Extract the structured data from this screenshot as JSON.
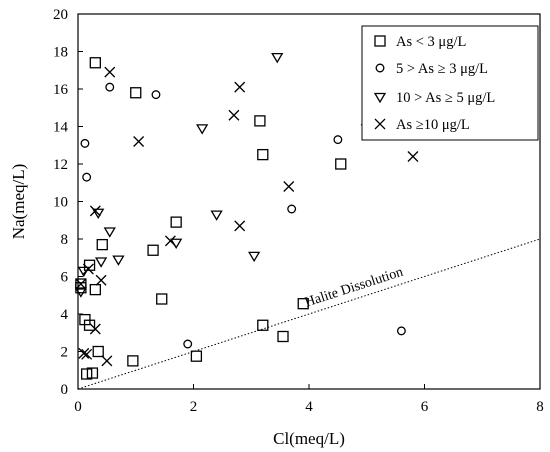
{
  "chart_data": {
    "type": "scatter",
    "xlabel": "Cl(meq/L)",
    "ylabel": "Na(meq/L)",
    "xlim": [
      0,
      8
    ],
    "ylim": [
      0,
      20
    ],
    "x_ticks": [
      "0",
      "2",
      "4",
      "6",
      "8"
    ],
    "y_ticks": [
      "0",
      "2",
      "4",
      "6",
      "8",
      "10",
      "12",
      "14",
      "16",
      "18",
      "20"
    ],
    "grid": false,
    "legend_position": "top-right",
    "series": [
      {
        "name": "As < 3 μg/L",
        "marker": "square",
        "points": [
          [
            0.05,
            5.6
          ],
          [
            0.05,
            5.4
          ],
          [
            0.12,
            3.7
          ],
          [
            0.15,
            0.8
          ],
          [
            0.2,
            6.6
          ],
          [
            0.2,
            3.4
          ],
          [
            0.25,
            0.85
          ],
          [
            0.3,
            17.4
          ],
          [
            0.3,
            5.3
          ],
          [
            0.35,
            2.0
          ],
          [
            0.42,
            7.7
          ],
          [
            0.95,
            1.5
          ],
          [
            1.0,
            15.8
          ],
          [
            1.3,
            7.4
          ],
          [
            1.45,
            4.8
          ],
          [
            1.7,
            8.9
          ],
          [
            2.05,
            1.75
          ],
          [
            3.15,
            14.3
          ],
          [
            3.2,
            12.5
          ],
          [
            3.2,
            3.4
          ],
          [
            3.55,
            2.8
          ],
          [
            3.9,
            4.55
          ],
          [
            4.55,
            12.0
          ]
        ]
      },
      {
        "name": "5 > As ≥ 3 μg/L",
        "marker": "circle",
        "points": [
          [
            0.12,
            13.1
          ],
          [
            0.15,
            11.3
          ],
          [
            0.55,
            16.1
          ],
          [
            1.35,
            15.7
          ],
          [
            1.9,
            2.4
          ],
          [
            3.7,
            9.6
          ],
          [
            4.5,
            13.3
          ],
          [
            5.6,
            3.1
          ]
        ]
      },
      {
        "name": "10 > As ≥ 5 μg/L",
        "marker": "triangle-down",
        "points": [
          [
            0.05,
            5.2
          ],
          [
            0.1,
            6.3
          ],
          [
            0.35,
            9.4
          ],
          [
            0.4,
            6.8
          ],
          [
            0.55,
            8.4
          ],
          [
            0.7,
            6.9
          ],
          [
            1.7,
            7.8
          ],
          [
            2.15,
            13.9
          ],
          [
            2.4,
            9.3
          ],
          [
            3.05,
            7.1
          ],
          [
            3.45,
            17.7
          ],
          [
            5.0,
            13.9
          ]
        ]
      },
      {
        "name": "As ≥10 μg/L",
        "marker": "x",
        "points": [
          [
            0.05,
            5.6
          ],
          [
            0.1,
            1.9
          ],
          [
            0.15,
            1.85
          ],
          [
            0.18,
            6.4
          ],
          [
            0.3,
            9.5
          ],
          [
            0.3,
            3.2
          ],
          [
            0.4,
            5.8
          ],
          [
            0.5,
            1.5
          ],
          [
            0.55,
            16.9
          ],
          [
            1.05,
            13.2
          ],
          [
            1.6,
            7.9
          ],
          [
            2.7,
            14.6
          ],
          [
            2.8,
            16.1
          ],
          [
            2.8,
            8.7
          ],
          [
            3.65,
            10.8
          ],
          [
            5.8,
            12.4
          ]
        ]
      }
    ],
    "reference_line": {
      "label": "Halite Dissolution",
      "style": "dotted",
      "points": [
        [
          0,
          0
        ],
        [
          8,
          8
        ]
      ]
    }
  }
}
